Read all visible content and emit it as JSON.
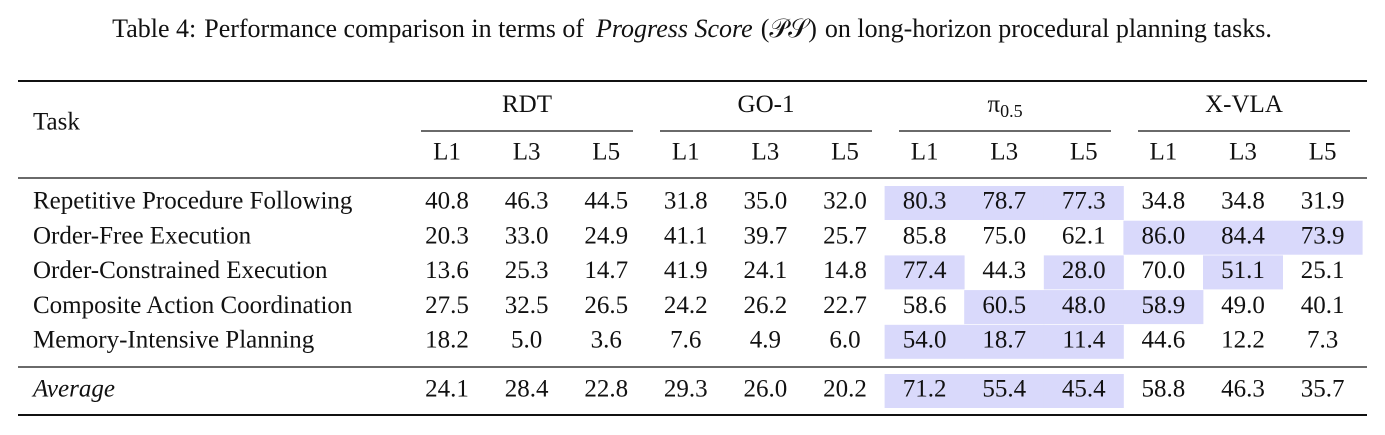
{
  "caption": {
    "label": "Table 4:",
    "before": "Performance comparison in terms of",
    "metric": "Progress Score",
    "symbol": "(𝒫𝒮)",
    "after": "on long-horizon procedural planning tasks."
  },
  "table": {
    "task_header": "Task",
    "highlight_color": "#d9d9fb",
    "groups": [
      {
        "name": "RDT",
        "levels": [
          "L1",
          "L3",
          "L5"
        ]
      },
      {
        "name": "GO-1",
        "levels": [
          "L1",
          "L3",
          "L5"
        ]
      },
      {
        "name": "π",
        "sub": "0.5",
        "levels": [
          "L1",
          "L3",
          "L5"
        ]
      },
      {
        "name": "X-VLA",
        "levels": [
          "L1",
          "L3",
          "L5"
        ]
      }
    ],
    "rows": [
      {
        "task": "Repetitive Procedure Following",
        "values": [
          "40.8",
          "46.3",
          "44.5",
          "31.8",
          "35.0",
          "32.0",
          "80.3",
          "78.7",
          "77.3",
          "34.8",
          "34.8",
          "31.9"
        ],
        "highlighted": [
          6,
          7,
          8
        ]
      },
      {
        "task": "Order-Free Execution",
        "values": [
          "20.3",
          "33.0",
          "24.9",
          "41.1",
          "39.7",
          "25.7",
          "85.8",
          "75.0",
          "62.1",
          "86.0",
          "84.4",
          "73.9"
        ],
        "highlighted": [
          9,
          10,
          11
        ]
      },
      {
        "task": "Order-Constrained Execution",
        "values": [
          "13.6",
          "25.3",
          "14.7",
          "41.9",
          "24.1",
          "14.8",
          "77.4",
          "44.3",
          "28.0",
          "70.0",
          "51.1",
          "25.1"
        ],
        "highlighted": [
          6,
          8,
          10
        ]
      },
      {
        "task": "Composite Action Coordination",
        "values": [
          "27.5",
          "32.5",
          "26.5",
          "24.2",
          "26.2",
          "22.7",
          "58.6",
          "60.5",
          "48.0",
          "58.9",
          "49.0",
          "40.1"
        ],
        "highlighted": [
          7,
          8,
          9
        ]
      },
      {
        "task": "Memory-Intensive Planning",
        "values": [
          "18.2",
          "5.0",
          "3.6",
          "7.6",
          "4.9",
          "6.0",
          "54.0",
          "18.7",
          "11.4",
          "44.6",
          "12.2",
          "7.3"
        ],
        "highlighted": [
          6,
          7,
          8
        ]
      }
    ],
    "average": {
      "task": "Average",
      "values": [
        "24.1",
        "28.4",
        "22.8",
        "29.3",
        "26.0",
        "20.2",
        "71.2",
        "55.4",
        "45.4",
        "58.8",
        "46.3",
        "35.7"
      ],
      "highlighted": [
        6,
        7,
        8
      ]
    }
  }
}
